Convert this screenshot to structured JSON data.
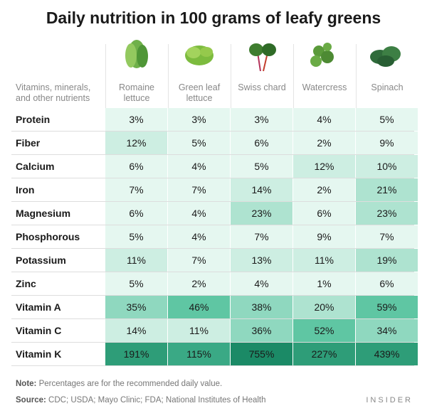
{
  "header": {
    "title": "Daily nutrition in 100 grams of leafy greens"
  },
  "table": {
    "row_header": "Vitamins, minerals, and other nutrients",
    "columns": [
      "Romaine lettuce",
      "Green leaf lettuce",
      "Swiss chard",
      "Watercress",
      "Spinach"
    ],
    "rows": [
      {
        "label": "Protein",
        "values": [
          "3%",
          "3%",
          "3%",
          "4%",
          "5%"
        ]
      },
      {
        "label": "Fiber",
        "values": [
          "12%",
          "5%",
          "6%",
          "2%",
          "9%"
        ]
      },
      {
        "label": "Calcium",
        "values": [
          "6%",
          "4%",
          "5%",
          "12%",
          "10%"
        ]
      },
      {
        "label": "Iron",
        "values": [
          "7%",
          "7%",
          "14%",
          "2%",
          "21%"
        ]
      },
      {
        "label": "Magnesium",
        "values": [
          "6%",
          "4%",
          "23%",
          "6%",
          "23%"
        ]
      },
      {
        "label": "Phosphorous",
        "values": [
          "5%",
          "4%",
          "7%",
          "9%",
          "7%"
        ]
      },
      {
        "label": "Potassium",
        "values": [
          "11%",
          "7%",
          "13%",
          "11%",
          "19%"
        ]
      },
      {
        "label": "Zinc",
        "values": [
          "5%",
          "2%",
          "4%",
          "1%",
          "6%"
        ]
      },
      {
        "label": "Vitamin A",
        "values": [
          "35%",
          "46%",
          "38%",
          "20%",
          "59%"
        ]
      },
      {
        "label": "Vitamin C",
        "values": [
          "14%",
          "11%",
          "36%",
          "52%",
          "34%"
        ]
      },
      {
        "label": "Vitamin K",
        "values": [
          "191%",
          "115%",
          "755%",
          "227%",
          "439%"
        ]
      }
    ]
  },
  "footer": {
    "note_label": "Note:",
    "note_text": "Percentages are for the recommended daily value.",
    "source_label": "Source:",
    "source_text": "CDC; USDA; Mayo Clinic; FDA; National Institutes of Health",
    "brand": "INSIDER"
  }
}
